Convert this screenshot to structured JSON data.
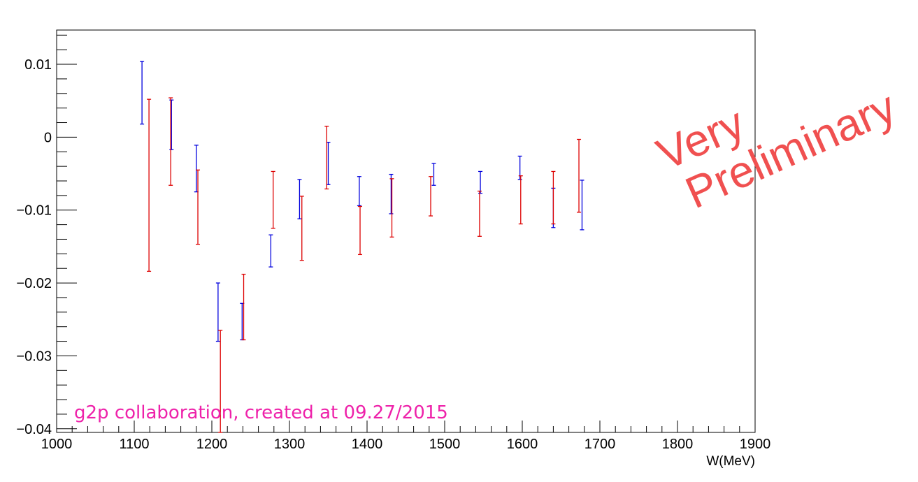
{
  "chart_data": {
    "type": "scatter",
    "title": "",
    "xlabel": "W(MeV)",
    "ylabel": "",
    "xlim": [
      1000,
      1900
    ],
    "ylim": [
      -0.0405,
      0.0147
    ],
    "x_ticks": [
      1000,
      1100,
      1200,
      1300,
      1400,
      1500,
      1600,
      1700,
      1800,
      1900
    ],
    "x_tick_labels": [
      "1000",
      "1100",
      "1200",
      "1300",
      "1400",
      "1500",
      "1600",
      "1700",
      "1800",
      "1900"
    ],
    "y_ticks": [
      -0.04,
      -0.03,
      -0.02,
      -0.01,
      0,
      0.01
    ],
    "y_tick_labels": [
      "−0.04",
      "−0.03",
      "−0.02",
      "−0.01",
      "0",
      "0.01"
    ],
    "series": [
      {
        "name": "blue",
        "color": "#0000dd",
        "points": [
          {
            "x": 1110,
            "y": 0.0061,
            "err": 0.0043
          },
          {
            "x": 1148,
            "y": 0.0017,
            "err": 0.0034
          },
          {
            "x": 1180,
            "y": -0.0043,
            "err": 0.0032
          },
          {
            "x": 1208,
            "y": -0.024,
            "err": 0.004
          },
          {
            "x": 1239,
            "y": -0.0253,
            "err": 0.0025
          },
          {
            "x": 1276,
            "y": -0.0156,
            "err": 0.0022
          },
          {
            "x": 1313,
            "y": -0.0085,
            "err": 0.0027
          },
          {
            "x": 1350,
            "y": -0.0036,
            "err": 0.0029
          },
          {
            "x": 1390,
            "y": -0.0074,
            "err": 0.002
          },
          {
            "x": 1431,
            "y": -0.0078,
            "err": 0.0027
          },
          {
            "x": 1486,
            "y": -0.0051,
            "err": 0.0015
          },
          {
            "x": 1546,
            "y": -0.0062,
            "err": 0.0015
          },
          {
            "x": 1597,
            "y": -0.0042,
            "err": 0.0016
          },
          {
            "x": 1640,
            "y": -0.0097,
            "err": 0.0027
          },
          {
            "x": 1677,
            "y": -0.0093,
            "err": 0.0034
          }
        ]
      },
      {
        "name": "red",
        "color": "#dd0000",
        "points": [
          {
            "x": 1119,
            "y": -0.0066,
            "err": 0.0118
          },
          {
            "x": 1147,
            "y": -0.0006,
            "err": 0.006
          },
          {
            "x": 1182,
            "y": -0.0096,
            "err": 0.0051
          },
          {
            "x": 1211,
            "y": -0.0335,
            "err": 0.007
          },
          {
            "x": 1241,
            "y": -0.0233,
            "err": 0.0045
          },
          {
            "x": 1279,
            "y": -0.0086,
            "err": 0.0039
          },
          {
            "x": 1316,
            "y": -0.0125,
            "err": 0.0044
          },
          {
            "x": 1348,
            "y": -0.0028,
            "err": 0.0043
          },
          {
            "x": 1391,
            "y": -0.0128,
            "err": 0.0033
          },
          {
            "x": 1432,
            "y": -0.0097,
            "err": 0.004
          },
          {
            "x": 1482,
            "y": -0.0081,
            "err": 0.0027
          },
          {
            "x": 1545,
            "y": -0.0105,
            "err": 0.0031
          },
          {
            "x": 1598,
            "y": -0.0086,
            "err": 0.0033
          },
          {
            "x": 1640,
            "y": -0.0083,
            "err": 0.0036
          },
          {
            "x": 1673,
            "y": -0.0053,
            "err": 0.005
          }
        ]
      }
    ],
    "annotations": {
      "credit": "g2p collaboration, created at 09.27/2015",
      "credit_color": "#ee22aa",
      "watermark_line1": "Very",
      "watermark_line2": "Preliminary",
      "watermark_color": "#f05050"
    }
  }
}
